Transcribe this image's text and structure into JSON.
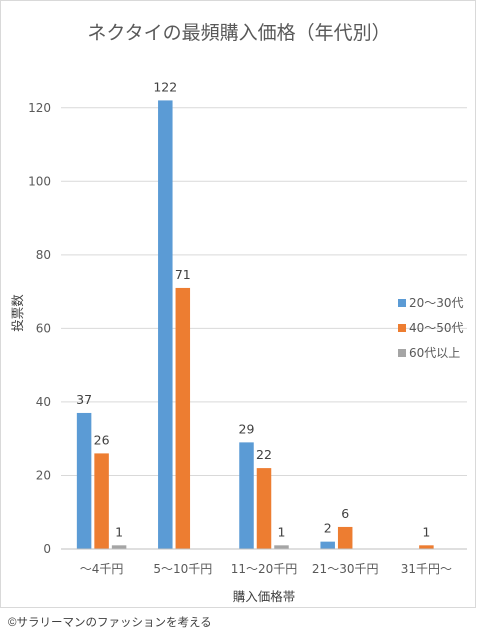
{
  "chart_data": {
    "type": "bar",
    "title": "ネクタイの最頻購入価格（年代別）",
    "xlabel": "購入価格帯",
    "ylabel": "投票数",
    "categories": [
      "～4千円",
      "5～10千円",
      "11～20千円",
      "21～30千円",
      "31千円～"
    ],
    "ylim": [
      0,
      130
    ],
    "yticks": [
      0,
      20,
      40,
      60,
      80,
      100,
      120
    ],
    "grid": true,
    "legend_position": "right",
    "series": [
      {
        "name": "20～30代",
        "color": "#5b9bd5",
        "values": [
          37,
          122,
          29,
          2,
          null
        ]
      },
      {
        "name": "40～50代",
        "color": "#ed7d31",
        "values": [
          26,
          71,
          22,
          6,
          1
        ]
      },
      {
        "name": "60代以上",
        "color": "#a5a5a5",
        "values": [
          1,
          null,
          1,
          null,
          null
        ]
      }
    ]
  },
  "footer": {
    "credit": "©サラリーマンのファッションを考える"
  }
}
